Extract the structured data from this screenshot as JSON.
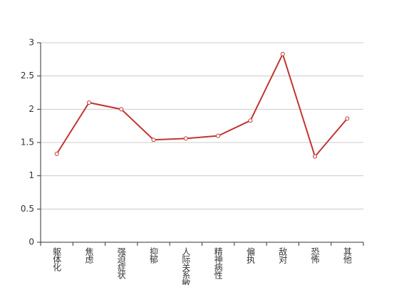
{
  "chart_data": {
    "type": "line",
    "categories": [
      "躯体化",
      "焦虑",
      "强迫症状",
      "抑郁",
      "人际关系敏感",
      "精神病性",
      "偏执",
      "敌对",
      "恐怖",
      "其他"
    ],
    "values": [
      1.33,
      2.1,
      2.0,
      1.54,
      1.56,
      1.6,
      1.83,
      2.83,
      1.29,
      1.86
    ],
    "color": "#c23531",
    "ylim": [
      0,
      3
    ],
    "yticks": [
      0,
      0.5,
      1,
      1.5,
      2,
      2.5,
      3
    ],
    "grid": true
  }
}
